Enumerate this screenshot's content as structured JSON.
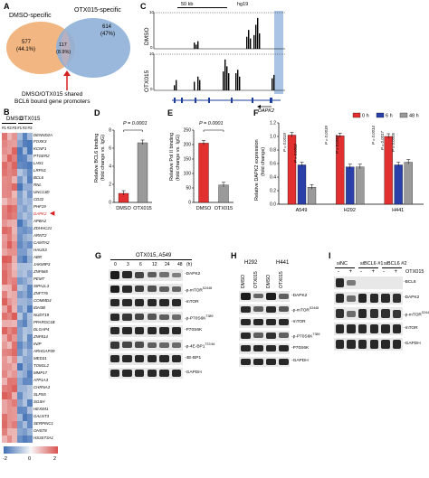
{
  "panels": {
    "A": {
      "label": "A",
      "dmso_title": "DMSO-specific",
      "otx_title": "OTX015-specific",
      "left_count": "577",
      "left_pct": "(44.1%)",
      "mid_count": "117",
      "mid_pct": "(8.9%)",
      "right_count": "614",
      "right_pct": "(47%)",
      "caption_line1": "DMSO/OTX015 shared",
      "caption_line2": "BCL6 bound gene promoters",
      "colors": {
        "left": "#f0b27a",
        "right": "#8fb0d8",
        "arrow": "#d62020"
      }
    },
    "B": {
      "label": "B",
      "group_dmso": "DMSO",
      "group_otx": "OTX015",
      "reps": [
        "#1",
        "#2",
        "#3",
        "#1",
        "#2",
        "#3"
      ],
      "genes": [
        "DENND2A",
        "FOXK3",
        "KCNF1",
        "PTGER2",
        "LHX1",
        "LRFN1",
        "BCL6",
        "RNL",
        "UNC13D",
        "CD22",
        "PHF19",
        "DAPK2",
        "APBA2",
        "ZDHHC21",
        "ARNT2",
        "CAMTA2",
        "HAUS3",
        "ABR",
        "JAKMIP3",
        "ZNF665",
        "PEMT",
        "SIPA1L3",
        "ZNF776",
        "COMMD4",
        "IDH3B",
        "NUDT19",
        "PPARGC1B",
        "DLGAP4",
        "ZNF814",
        "INIP",
        "ARHGAP39",
        "MED31",
        "TOM1L2",
        "MMP17",
        "ATP1A3",
        "CHRNA3",
        "SLFN5",
        "SGSH",
        "HEXIM1",
        "GALNT3",
        "SERPINC1",
        "OHST8",
        "HS3ST3A1"
      ],
      "highlight_gene": "DAPK2",
      "legend_ticks": [
        "-2",
        "0",
        "2"
      ],
      "colors": {
        "high": "#d9534f",
        "low": "#3f6fb5",
        "mid": "#f7f7f7"
      }
    },
    "C": {
      "label": "C",
      "scale_bar": "50 kb",
      "genome": "hg19",
      "track1": "DMSO",
      "track2": "OTX015",
      "ymax": "10",
      "ymin": "0",
      "gene_name": "DAPK2"
    },
    "D": {
      "label": "D",
      "pvalue": "P = 0.0001",
      "ylabel_line1": "Relative BCL6 binding",
      "ylabel_line2": "(fold change vs. IgG)",
      "categories": [
        "DMSO",
        "OTX015"
      ],
      "yticks": [
        "0",
        "2",
        "4",
        "6",
        "8"
      ]
    },
    "E": {
      "label": "E",
      "pvalue": "P = 0.0001",
      "ylabel_line1": "Relative Pol II binding",
      "ylabel_line2": "(fold change vs. IgG)",
      "categories": [
        "DMSO",
        "OTX015"
      ],
      "yticks": [
        "0",
        "50",
        "100",
        "150",
        "200",
        "250"
      ]
    },
    "F": {
      "label": "F",
      "ylabel_line1": "Relative DAPK2 expression",
      "ylabel_line2": "(fold change)",
      "legend": [
        "0 h",
        "6 h",
        "48 h"
      ],
      "categories": [
        "A549",
        "H292",
        "H441"
      ],
      "yticks": [
        "0.0",
        "0.2",
        "0.4",
        "0.6",
        "0.8",
        "1.0",
        "1.2"
      ],
      "pvalues": [
        "P = 0.0019",
        "P = 0.0002",
        "P = 0.0039",
        "P = 0.0002",
        "P = 0.0014",
        "P = 0.0017",
        "P = 0.0005"
      ],
      "colors": {
        "h0": "#e23030",
        "h6": "#2b3fa8",
        "h48": "#9a9a9a"
      }
    },
    "G": {
      "label": "G",
      "header": "OTX015, A549",
      "times": [
        "0",
        "3",
        "6",
        "12",
        "24",
        "48"
      ],
      "time_unit": "(h)",
      "rows": [
        "DAPK2",
        "p-mTOR",
        "mTOR",
        "p-P70S6K",
        "P70S6K",
        "p-4E-BP1",
        "4E-BP1",
        "GAPDH"
      ],
      "sups": {
        "p-mTOR": "S2448",
        "p-P70S6K": "T389",
        "p-4E-BP1": "T37/46"
      }
    },
    "H": {
      "label": "H",
      "cells": [
        "H292",
        "H441"
      ],
      "lanes": [
        "DMSO",
        "OTX015",
        "DMSO",
        "OTX015"
      ],
      "rows": [
        "DAPK2",
        "p-mTOR",
        "mTOR",
        "p-P70S6K",
        "P70S6K",
        "GAPDH"
      ],
      "sups": {
        "p-mTOR": "S2448",
        "p-P70S6K": "T389"
      }
    },
    "I": {
      "label": "I",
      "groups": [
        "siNC",
        "siBCL6 #1",
        "siBCL6 #2"
      ],
      "treatment": "OTX015",
      "signs": [
        "-",
        "+",
        "-",
        "+",
        "-",
        "+"
      ],
      "rows": [
        "BCL6",
        "DAPK2",
        "p-mTOR",
        "mTOR",
        "GAPDH"
      ],
      "sups": {
        "p-mTOR": "S2448"
      }
    }
  },
  "chart_data": [
    {
      "type": "bar",
      "categories": [
        "DMSO",
        "OTX015"
      ],
      "values": [
        1.0,
        6.6
      ],
      "ylabel": "Relative BCL6 binding (fold change vs. IgG)",
      "ylim": [
        0,
        8
      ],
      "colors": [
        "#e23030",
        "#9a9a9a"
      ]
    },
    {
      "type": "bar",
      "categories": [
        "DMSO",
        "OTX015"
      ],
      "values": [
        205,
        60
      ],
      "ylabel": "Relative Pol II binding (fold change vs. IgG)",
      "ylim": [
        0,
        250
      ],
      "colors": [
        "#e23030",
        "#9a9a9a"
      ]
    },
    {
      "type": "bar",
      "categories": [
        "A549",
        "H292",
        "H441"
      ],
      "series": [
        {
          "name": "0 h",
          "values": [
            1.02,
            1.01,
            1.0
          ]
        },
        {
          "name": "6 h",
          "values": [
            0.58,
            0.55,
            0.58
          ]
        },
        {
          "name": "48 h",
          "values": [
            0.25,
            0.55,
            0.62
          ]
        }
      ],
      "ylabel": "Relative DAPK2 expression (fold change)",
      "ylim": [
        0,
        1.2
      ]
    }
  ]
}
